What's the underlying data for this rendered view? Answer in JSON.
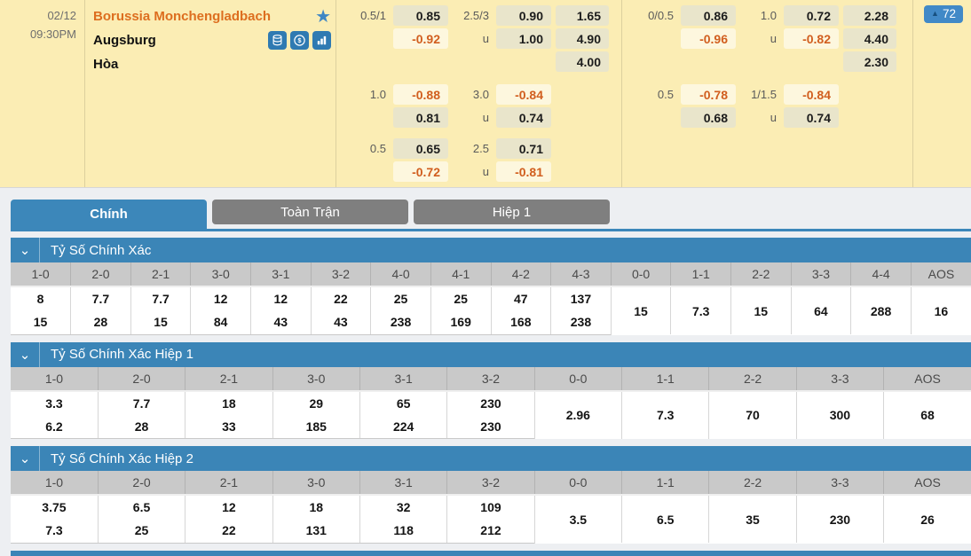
{
  "colors": {
    "accent_blue": "#3b85b7",
    "tab_gray": "#7f7f7f",
    "cream_bg": "#fbedb4",
    "odds_pos_bg": "#e9e5cb",
    "odds_neg_bg": "#fdf7de",
    "neg_orange": "#d15e1e",
    "team_orange": "#dd6e1f",
    "icon_blue": "#2f7ab2",
    "badge_blue": "#4189c7"
  },
  "match": {
    "date": "02/12",
    "time": "09:30PM",
    "home_team": "Borussia Monchengladbach",
    "away_team": "Augsburg",
    "draw_label": "Hòa",
    "more_bets_count": "72",
    "more_bets_arrow": "▲",
    "chevron_glyph": "⌄",
    "icons": [
      "favorite-star-icon",
      "stacked-coins-icon",
      "dollar-icon",
      "bar-chart-icon"
    ]
  },
  "odds_groups": [
    {
      "id": "full-time",
      "blocks": [
        {
          "hdp_label": "0.5/1",
          "hdp_top": "0.85",
          "hdp_bottom": "-0.92",
          "ou_label": "2.5/3",
          "ou_top": "0.90",
          "ou_under_label": "u",
          "ou_bottom": "1.00",
          "x12": [
            "1.65",
            "4.90",
            "4.00"
          ]
        },
        {
          "hdp_label": "1.0",
          "hdp_top": "-0.88",
          "hdp_bottom": "0.81",
          "ou_label": "3.0",
          "ou_top": "-0.84",
          "ou_under_label": "u",
          "ou_bottom": "0.74",
          "x12": []
        },
        {
          "hdp_label": "0.5",
          "hdp_top": "0.65",
          "hdp_bottom": "-0.72",
          "ou_label": "2.5",
          "ou_top": "0.71",
          "ou_under_label": "u",
          "ou_bottom": "-0.81",
          "x12": []
        }
      ]
    },
    {
      "id": "first-half",
      "blocks": [
        {
          "hdp_label": "0/0.5",
          "hdp_top": "0.86",
          "hdp_bottom": "-0.96",
          "ou_label": "1.0",
          "ou_top": "0.72",
          "ou_under_label": "u",
          "ou_bottom": "-0.82",
          "x12": [
            "2.28",
            "4.40",
            "2.30"
          ]
        },
        {
          "hdp_label": "0.5",
          "hdp_top": "-0.78",
          "hdp_bottom": "0.68",
          "ou_label": "1/1.5",
          "ou_top": "-0.84",
          "ou_under_label": "u",
          "ou_bottom": "0.74",
          "x12": []
        }
      ]
    }
  ],
  "tabs": [
    {
      "label": "Chính",
      "active": true
    },
    {
      "label": "Toàn Trận",
      "active": false
    },
    {
      "label": "Hiệp 1",
      "active": false
    }
  ],
  "sections": [
    {
      "title": "Tỷ Số Chính Xác",
      "headers": [
        "1-0",
        "2-0",
        "2-1",
        "3-0",
        "3-1",
        "3-2",
        "4-0",
        "4-1",
        "4-2",
        "4-3",
        "0-0",
        "1-1",
        "2-2",
        "3-3",
        "4-4",
        "AOS"
      ],
      "pairs": [
        [
          "8",
          "15"
        ],
        [
          "7.7",
          "28"
        ],
        [
          "7.7",
          "15"
        ],
        [
          "12",
          "84"
        ],
        [
          "12",
          "43"
        ],
        [
          "22",
          "43"
        ],
        [
          "25",
          "238"
        ],
        [
          "25",
          "169"
        ],
        [
          "47",
          "168"
        ],
        [
          "137",
          "238"
        ]
      ],
      "singles": [
        "15",
        "7.3",
        "15",
        "64",
        "288",
        "16"
      ]
    },
    {
      "title": "Tỷ Số Chính Xác Hiệp 1",
      "headers": [
        "1-0",
        "2-0",
        "2-1",
        "3-0",
        "3-1",
        "3-2",
        "0-0",
        "1-1",
        "2-2",
        "3-3",
        "AOS"
      ],
      "pairs": [
        [
          "3.3",
          "6.2"
        ],
        [
          "7.7",
          "28"
        ],
        [
          "18",
          "33"
        ],
        [
          "29",
          "185"
        ],
        [
          "65",
          "224"
        ],
        [
          "230",
          "230"
        ]
      ],
      "singles": [
        "2.96",
        "7.3",
        "70",
        "300",
        "68"
      ]
    },
    {
      "title": "Tỷ Số Chính Xác Hiệp 2",
      "headers": [
        "1-0",
        "2-0",
        "2-1",
        "3-0",
        "3-1",
        "3-2",
        "0-0",
        "1-1",
        "2-2",
        "3-3",
        "AOS"
      ],
      "pairs": [
        [
          "3.75",
          "7.3"
        ],
        [
          "6.5",
          "25"
        ],
        [
          "12",
          "22"
        ],
        [
          "18",
          "131"
        ],
        [
          "32",
          "118"
        ],
        [
          "109",
          "212"
        ]
      ],
      "singles": [
        "3.5",
        "6.5",
        "35",
        "230",
        "26"
      ]
    }
  ]
}
